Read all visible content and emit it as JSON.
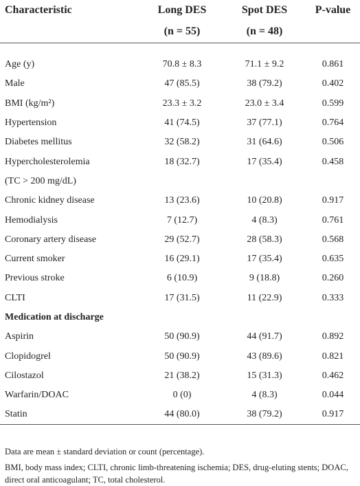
{
  "table": {
    "header": [
      "Characteristic",
      "Long DES",
      "Spot DES",
      "P-value"
    ],
    "header_sub": [
      null,
      "(n = 55)",
      "(n = 48)",
      null
    ],
    "sections": [
      {
        "title": null,
        "rows": [
          [
            "Age (y)",
            "70.8 ± 8.3",
            "71.1 ± 9.2",
            "0.861"
          ],
          [
            "Male",
            "47 (85.5)",
            "38 (79.2)",
            "0.402"
          ],
          [
            "BMI (kg/m²)",
            "23.3 ± 3.2",
            "23.0 ± 3.4",
            "0.599"
          ],
          [
            "Hypertension",
            "41 (74.5)",
            "37 (77.1)",
            "0.764"
          ],
          [
            "Diabetes mellitus",
            "32 (58.2)",
            "31 (64.6)",
            "0.506"
          ],
          [
            "Hypercholesterolemia",
            "18 (32.7)",
            "17 (35.4)",
            "0.458"
          ],
          [
            "(TC > 200 mg/dL)"
          ],
          [
            "Chronic kidney disease",
            "13 (23.6)",
            "10 (20.8)",
            "0.917"
          ],
          [
            "Hemodialysis",
            "7 (12.7)",
            "4 (8.3)",
            "0.761"
          ],
          [
            "Coronary artery disease",
            "29 (52.7)",
            "28 (58.3)",
            "0.568"
          ],
          [
            "Current smoker",
            "16 (29.1)",
            "17 (35.4)",
            "0.635"
          ],
          [
            "Previous stroke",
            "6 (10.9)",
            "9 (18.8)",
            "0.260"
          ],
          [
            "CLTI",
            "17 (31.5)",
            "11 (22.9)",
            "0.333"
          ]
        ]
      },
      {
        "title": "Medication at discharge",
        "rows": [
          [
            "Aspirin",
            "50 (90.9)",
            "44 (91.7)",
            "0.892"
          ],
          [
            "Clopidogrel",
            "50 (90.9)",
            "43 (89.6)",
            "0.821"
          ],
          [
            "Cilostazol",
            "21 (38.2)",
            "15 (31.3)",
            "0.462"
          ],
          [
            "Warfarin/DOAC",
            "0 (0)",
            "4 (8.3)",
            "0.044"
          ],
          [
            "Statin",
            "44 (80.0)",
            "38 (79.2)",
            "0.917"
          ]
        ]
      }
    ],
    "footnotes": [
      "Data are mean ± standard deviation or count (percentage).",
      "BMI, body mass index; CLTI, chronic limb-threatening ischemia; DES, drug-eluting stents; DOAC, direct oral anticoagulant; TC, total cholesterol."
    ]
  }
}
